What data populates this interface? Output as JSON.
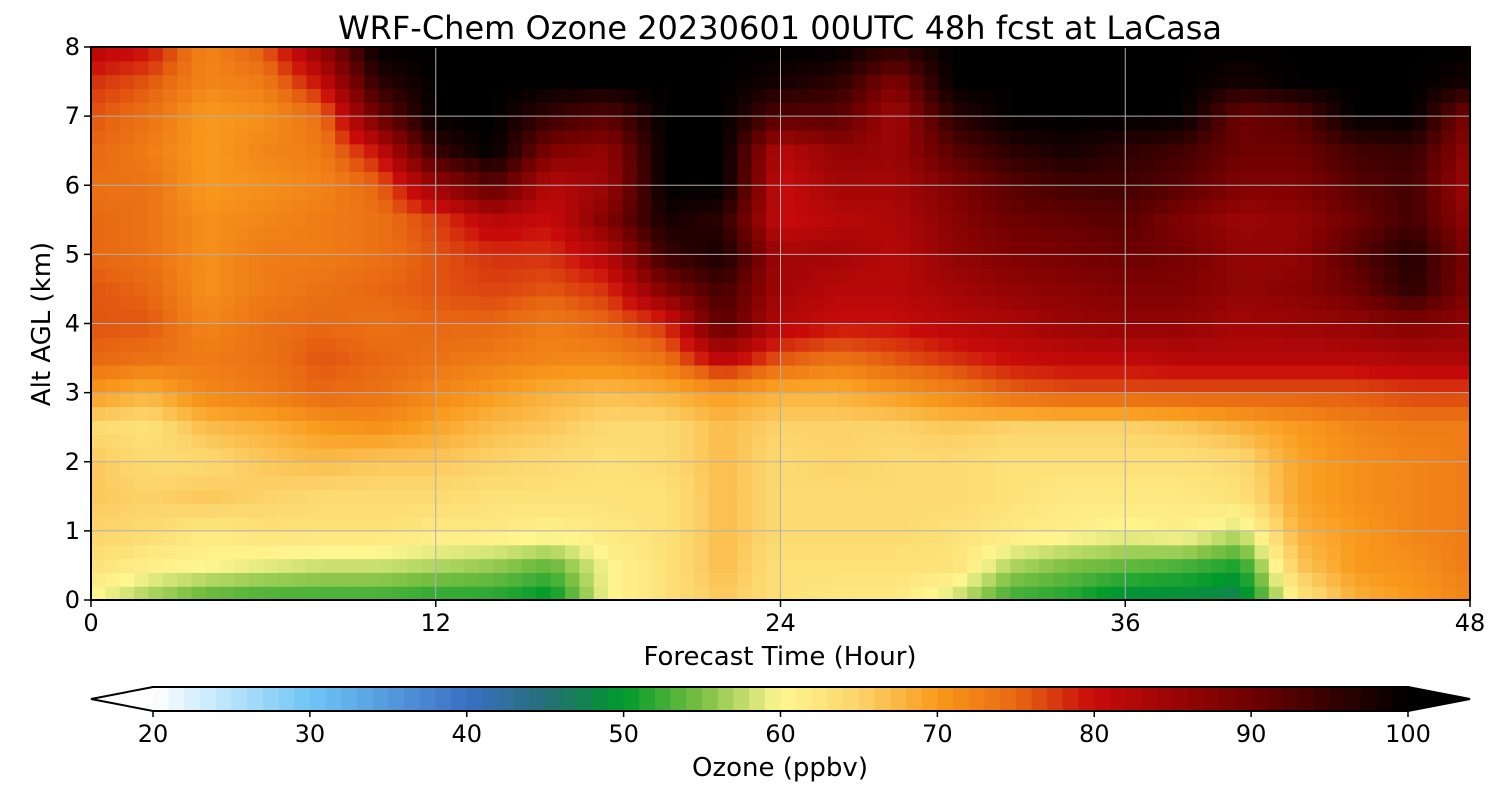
{
  "chart_data": {
    "type": "heatmap",
    "title": "WRF-Chem Ozone  20230601 00UTC 48h fcst at LaCasa",
    "xlabel": "Forecast Time (Hour)",
    "ylabel": "Alt AGL (km)",
    "xlim": [
      0,
      48
    ],
    "ylim": [
      0,
      8
    ],
    "xticks": [
      "0",
      "12",
      "24",
      "36",
      "48"
    ],
    "yticks": [
      "0",
      "1",
      "2",
      "3",
      "4",
      "5",
      "6",
      "7",
      "8"
    ],
    "grid": true,
    "x": [
      0,
      2,
      4,
      6,
      8,
      10,
      12,
      14,
      16,
      18,
      20,
      22,
      24,
      26,
      28,
      30,
      32,
      34,
      36,
      38,
      40,
      42,
      44,
      46,
      48
    ],
    "y": [
      0,
      0.5,
      1,
      1.5,
      2,
      2.5,
      3,
      3.5,
      4,
      4.5,
      5,
      5.5,
      6,
      6.5,
      7,
      7.5,
      8
    ],
    "z": [
      [
        60,
        56,
        53,
        52,
        52,
        52,
        51,
        51,
        49,
        60,
        63,
        66,
        63,
        62,
        62,
        58,
        52,
        51,
        48,
        48,
        47,
        62,
        68,
        70,
        72
      ],
      [
        63,
        61,
        60,
        59,
        58,
        58,
        57,
        56,
        54,
        60,
        63,
        67,
        63,
        63,
        63,
        63,
        57,
        55,
        54,
        53,
        51,
        66,
        70,
        71,
        73
      ],
      [
        65,
        64,
        62,
        63,
        63,
        63,
        62,
        62,
        61,
        62,
        63,
        67,
        64,
        64,
        64,
        63,
        62,
        61,
        60,
        61,
        58,
        68,
        70,
        72,
        73
      ],
      [
        66,
        65,
        66,
        65,
        64,
        64,
        64,
        63,
        63,
        63,
        63,
        67,
        64,
        64,
        64,
        64,
        63,
        62,
        62,
        62,
        63,
        69,
        71,
        72,
        73
      ],
      [
        66,
        64,
        64,
        66,
        67,
        66,
        66,
        65,
        64,
        63,
        64,
        67,
        64,
        65,
        64,
        64,
        63,
        63,
        63,
        63,
        64,
        69,
        71,
        72,
        73
      ],
      [
        64,
        63,
        67,
        68,
        70,
        71,
        69,
        67,
        66,
        64,
        64,
        67,
        65,
        65,
        65,
        66,
        65,
        65,
        65,
        66,
        68,
        70,
        72,
        73,
        73
      ],
      [
        70,
        68,
        72,
        73,
        75,
        74,
        72,
        70,
        68,
        67,
        68,
        70,
        68,
        68,
        70,
        72,
        75,
        76,
        76,
        76,
        76,
        76,
        76,
        77,
        77
      ],
      [
        75,
        74,
        73,
        74,
        76,
        75,
        74,
        73,
        72,
        72,
        74,
        82,
        76,
        74,
        76,
        78,
        80,
        81,
        81,
        82,
        82,
        82,
        82,
        83,
        83
      ],
      [
        76,
        76,
        72,
        74,
        75,
        74,
        75,
        75,
        73,
        75,
        78,
        92,
        82,
        80,
        80,
        82,
        83,
        85,
        86,
        86,
        84,
        85,
        86,
        88,
        86
      ],
      [
        76,
        75,
        71,
        73,
        74,
        75,
        76,
        77,
        76,
        78,
        88,
        94,
        84,
        82,
        82,
        84,
        86,
        87,
        88,
        88,
        86,
        87,
        90,
        96,
        88
      ],
      [
        75,
        74,
        71,
        73,
        73,
        74,
        76,
        78,
        78,
        82,
        95,
        98,
        84,
        84,
        82,
        86,
        88,
        89,
        90,
        89,
        86,
        86,
        92,
        97,
        88
      ],
      [
        75,
        74,
        71,
        72,
        73,
        74,
        77,
        82,
        80,
        88,
        98,
        96,
        80,
        82,
        83,
        87,
        90,
        91,
        92,
        88,
        85,
        86,
        90,
        94,
        86
      ],
      [
        74,
        74,
        70,
        71,
        72,
        75,
        85,
        92,
        82,
        85,
        100,
        100,
        80,
        84,
        84,
        88,
        92,
        94,
        94,
        92,
        88,
        88,
        92,
        94,
        84
      ],
      [
        75,
        73,
        70,
        72,
        73,
        80,
        95,
        100,
        88,
        86,
        100,
        100,
        82,
        86,
        85,
        92,
        96,
        98,
        96,
        94,
        90,
        90,
        94,
        95,
        86
      ],
      [
        76,
        74,
        70,
        71,
        74,
        90,
        100,
        100,
        95,
        92,
        100,
        100,
        92,
        92,
        84,
        96,
        100,
        100,
        100,
        100,
        90,
        92,
        100,
        100,
        88
      ],
      [
        78,
        76,
        72,
        73,
        80,
        96,
        100,
        100,
        100,
        100,
        100,
        100,
        98,
        96,
        88,
        100,
        100,
        100,
        100,
        100,
        98,
        100,
        100,
        100,
        98
      ],
      [
        82,
        80,
        72,
        76,
        86,
        100,
        100,
        100,
        100,
        100,
        100,
        100,
        100,
        100,
        96,
        100,
        100,
        100,
        100,
        100,
        100,
        100,
        100,
        100,
        100
      ]
    ],
    "colorbar": {
      "label": "Ozone  (ppbv)",
      "ticks": [
        "20",
        "30",
        "40",
        "50",
        "60",
        "70",
        "80",
        "90",
        "100"
      ],
      "min": 20,
      "max": 100,
      "extend": "both",
      "stops": [
        {
          "v": 20,
          "c": "#ffffff"
        },
        {
          "v": 30,
          "c": "#6ec5f5"
        },
        {
          "v": 40,
          "c": "#3a6fc4"
        },
        {
          "v": 45,
          "c": "#256e78"
        },
        {
          "v": 50,
          "c": "#009a2a"
        },
        {
          "v": 55,
          "c": "#7cc043"
        },
        {
          "v": 60,
          "c": "#fff690"
        },
        {
          "v": 65,
          "c": "#fcd36a"
        },
        {
          "v": 70,
          "c": "#f99a1c"
        },
        {
          "v": 75,
          "c": "#e86812"
        },
        {
          "v": 80,
          "c": "#c80a0a"
        },
        {
          "v": 90,
          "c": "#6e0000"
        },
        {
          "v": 100,
          "c": "#000000"
        }
      ]
    }
  }
}
